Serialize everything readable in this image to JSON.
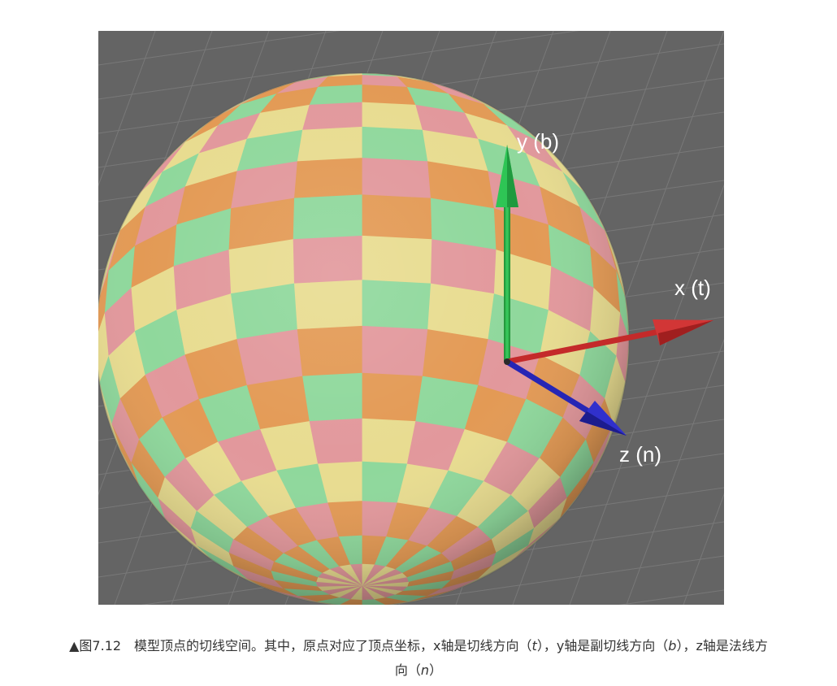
{
  "figure": {
    "axes": [
      {
        "id": "y",
        "label": "y (b)",
        "color": "#22b14c"
      },
      {
        "id": "x",
        "label": "x (t)",
        "color": "#c42a2a"
      },
      {
        "id": "z",
        "label": "z (n)",
        "color": "#2424b8"
      }
    ],
    "sphere_palette": [
      "#e8dc90",
      "#e2989c",
      "#e39a55",
      "#8fd89c"
    ],
    "background_color": "#646464"
  },
  "caption": {
    "line1_prefix": "▲图7.12　模型顶点的切线空间。其中，原点对应了顶点坐标，x轴是切线方向（",
    "t": "t",
    "line1_mid1": "），y轴是副切线方向（",
    "b": "b",
    "line1_mid2": "），z轴是法线方",
    "line2_prefix": "向（",
    "n": "n",
    "line2_suffix": "）"
  }
}
